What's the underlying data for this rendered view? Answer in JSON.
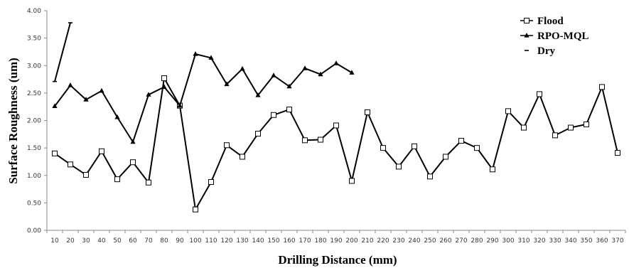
{
  "chart_data": {
    "type": "line",
    "title": "",
    "xlabel": "Drilling Distance (mm)",
    "ylabel": "Surface Roughness (um)",
    "ylim": [
      0,
      4
    ],
    "yticks": [
      "0.00",
      "0.50",
      "1.00",
      "1.50",
      "2.00",
      "2.50",
      "3.00",
      "3.50",
      "4.00"
    ],
    "categories": [
      "10",
      "20",
      "30",
      "40",
      "50",
      "60",
      "70",
      "80",
      "90",
      "100",
      "110",
      "120",
      "130",
      "140",
      "150",
      "160",
      "170",
      "180",
      "190",
      "200",
      "210",
      "220",
      "230",
      "240",
      "250",
      "260",
      "270",
      "280",
      "290",
      "300",
      "310",
      "320",
      "330",
      "340",
      "350",
      "360",
      "370"
    ],
    "legend_position": "top-right",
    "grid": false,
    "series": [
      {
        "name": "Flood",
        "marker": "square",
        "values": [
          1.4,
          1.2,
          1.01,
          1.44,
          0.93,
          1.24,
          0.87,
          2.77,
          2.27,
          0.38,
          0.88,
          1.55,
          1.34,
          1.76,
          2.1,
          2.2,
          1.64,
          1.65,
          1.91,
          0.9,
          2.15,
          1.5,
          1.16,
          1.53,
          0.98,
          1.34,
          1.63,
          1.5,
          1.11,
          2.17,
          1.87,
          2.48,
          1.73,
          1.87,
          1.93,
          2.61,
          1.41
        ]
      },
      {
        "name": "RPO-MQL",
        "marker": "triangle",
        "values": [
          2.26,
          2.64,
          2.38,
          2.54,
          2.06,
          1.61,
          2.47,
          2.61,
          2.27,
          3.21,
          3.14,
          2.66,
          2.94,
          2.46,
          2.82,
          2.62,
          2.95,
          2.84,
          3.04,
          2.87,
          null,
          null,
          null,
          null,
          null,
          null,
          null,
          null,
          null,
          null,
          null,
          null,
          null,
          null,
          null,
          null,
          null
        ]
      },
      {
        "name": "Dry",
        "marker": "dash",
        "values": [
          2.71,
          3.78,
          null,
          null,
          null,
          null,
          null,
          null,
          null,
          null,
          null,
          null,
          null,
          null,
          null,
          null,
          null,
          null,
          null,
          null,
          null,
          null,
          null,
          null,
          null,
          null,
          null,
          null,
          null,
          null,
          null,
          null,
          null,
          null,
          null,
          null,
          null
        ]
      }
    ]
  }
}
